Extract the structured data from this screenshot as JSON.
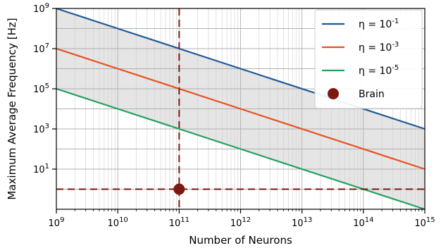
{
  "chart_data": {
    "type": "line",
    "xlabel": "Number of Neurons",
    "ylabel": "Maximum Average Frequency [Hz]",
    "xscale": "log",
    "yscale": "log",
    "xlim": [
      1000000000.0,
      1000000000000000.0
    ],
    "ylim": [
      0.1,
      1000000000.0
    ],
    "x_ticks": [
      {
        "value": 1000000000.0,
        "base": "10",
        "exp": "9"
      },
      {
        "value": 10000000000.0,
        "base": "10",
        "exp": "10"
      },
      {
        "value": 100000000000.0,
        "base": "10",
        "exp": "11"
      },
      {
        "value": 1000000000000.0,
        "base": "10",
        "exp": "12"
      },
      {
        "value": 10000000000000.0,
        "base": "10",
        "exp": "13"
      },
      {
        "value": 100000000000000.0,
        "base": "10",
        "exp": "14"
      },
      {
        "value": 1000000000000000.0,
        "base": "10",
        "exp": "15"
      }
    ],
    "y_ticks": [
      {
        "value": 10,
        "base": "10",
        "exp": "1"
      },
      {
        "value": 1000,
        "base": "10",
        "exp": "3"
      },
      {
        "value": 100000,
        "base": "10",
        "exp": "5"
      },
      {
        "value": 10000000,
        "base": "10",
        "exp": "7"
      },
      {
        "value": 1000000000,
        "base": "10",
        "exp": "9"
      }
    ],
    "grid": true,
    "legend_position": "top-right",
    "series": [
      {
        "name_prefix": "η = 10",
        "name_exp": "-1",
        "color": "#1f5a96",
        "x": [
          1000000000.0,
          1000000000000000.0
        ],
        "y": [
          1000000000.0,
          1000
        ]
      },
      {
        "name_prefix": "η = 10",
        "name_exp": "-3",
        "color": "#e8501e",
        "x": [
          1000000000.0,
          1000000000000000.0
        ],
        "y": [
          10000000.0,
          10
        ]
      },
      {
        "name_prefix": "η = 10",
        "name_exp": "-5",
        "color": "#22a25a",
        "x": [
          1000000000.0,
          1000000000000000.0
        ],
        "y": [
          100000.0,
          0.1
        ]
      }
    ],
    "shaded_band": {
      "between_series": [
        0,
        2
      ],
      "color": "#e5e5e5"
    },
    "marker": {
      "name": "Brain",
      "x": 100000000000.0,
      "y": 1,
      "color": "#7a1a12"
    },
    "reference_lines": {
      "color": "#7a1a12",
      "x": 100000000000.0,
      "y": 1
    }
  }
}
